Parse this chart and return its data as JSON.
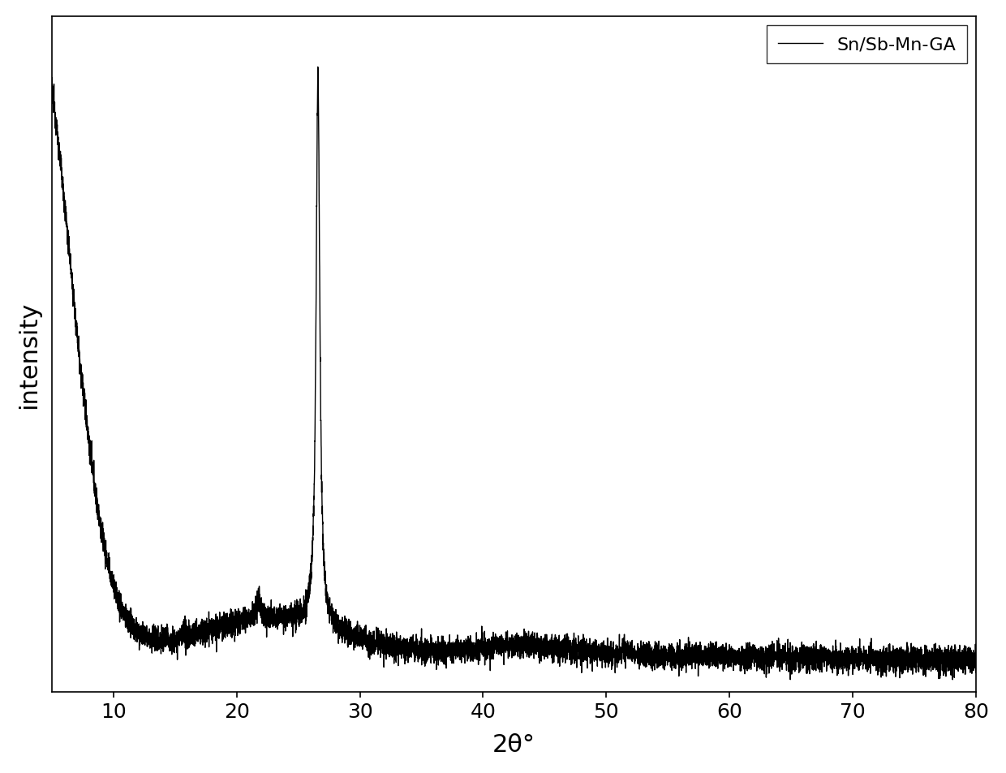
{
  "xlabel": "2θ°",
  "ylabel": "intensity",
  "xlim": [
    5,
    80
  ],
  "ylim_factor": 1.08,
  "line_color": "#000000",
  "line_width": 1.0,
  "legend_label": "Sn/Sb-Mn-GA",
  "background_color": "#ffffff",
  "xlabel_fontsize": 22,
  "ylabel_fontsize": 22,
  "tick_fontsize": 18,
  "legend_fontsize": 16,
  "xticks": [
    10,
    20,
    30,
    40,
    50,
    60,
    70,
    80
  ]
}
